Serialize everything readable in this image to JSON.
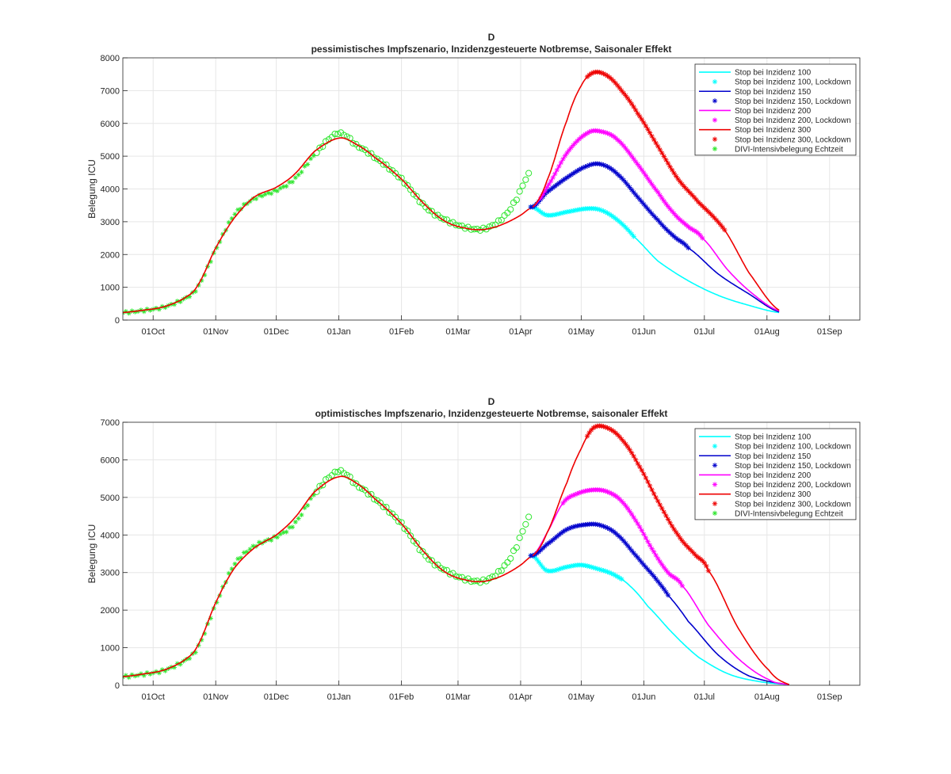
{
  "chart_data": [
    {
      "type": "line",
      "title": "D",
      "subtitle": "pessimistisches Impfszenario, Inzidenzgesteuerte Notbremse, Saisonaler Effekt",
      "xlabel": "",
      "ylabel": "Belegung ICU",
      "ylim": [
        0,
        8000
      ],
      "yticks": [
        "0",
        "1000",
        "2000",
        "3000",
        "4000",
        "5000",
        "6000",
        "7000",
        "8000"
      ],
      "xlim_day": [
        -15,
        350
      ],
      "xticks": [
        {
          "day": 0,
          "label": "01Oct"
        },
        {
          "day": 31,
          "label": "01Nov"
        },
        {
          "day": 61,
          "label": "01Dec"
        },
        {
          "day": 92,
          "label": "01Jan"
        },
        {
          "day": 123,
          "label": "01Feb"
        },
        {
          "day": 151,
          "label": "01Mar"
        },
        {
          "day": 182,
          "label": "01Apr"
        },
        {
          "day": 212,
          "label": "01May"
        },
        {
          "day": 243,
          "label": "01Jun"
        },
        {
          "day": 273,
          "label": "01Jul"
        },
        {
          "day": 304,
          "label": "01Aug"
        },
        {
          "day": 335,
          "label": "01Sep"
        }
      ],
      "grid": true,
      "legend_position": "top-right",
      "base_curve": {
        "x": [
          -15,
          -5,
          5,
          15,
          22,
          31,
          40,
          50,
          61,
          70,
          80,
          92,
          100,
          110,
          123,
          135,
          145,
          155,
          163,
          170,
          176,
          182,
          188
        ],
        "y": [
          230,
          300,
          400,
          650,
          1050,
          2200,
          3100,
          3750,
          4050,
          4450,
          5150,
          5550,
          5380,
          4950,
          4300,
          3500,
          3000,
          2800,
          2760,
          2850,
          3000,
          3200,
          3450
        ]
      },
      "observed": {
        "name": "DIVI-Intensivbelegung Echtzeit",
        "color": "#2ee62e",
        "x": [
          -15,
          -5,
          5,
          15,
          22,
          31,
          40,
          50,
          61,
          70,
          80,
          90,
          92,
          96,
          100,
          110,
          123,
          135,
          145,
          155,
          163,
          170,
          176,
          180,
          183,
          186
        ],
        "y": [
          230,
          290,
          390,
          630,
          1000,
          2150,
          3200,
          3700,
          3950,
          4300,
          5050,
          5650,
          5700,
          5600,
          5350,
          4950,
          4300,
          3450,
          3050,
          2820,
          2770,
          2950,
          3300,
          3700,
          4100,
          4450
        ]
      },
      "series": [
        {
          "name": "Stop bei Inzidenz 100",
          "color": "#00ffff",
          "lockdown_range": [
            187,
            238
          ],
          "x": [
            188,
            195,
            205,
            215,
            222,
            230,
            238,
            250,
            265,
            280,
            295,
            310
          ],
          "y": [
            3450,
            3200,
            3300,
            3400,
            3350,
            3050,
            2550,
            1800,
            1200,
            750,
            450,
            230
          ]
        },
        {
          "name": "Stop bei Inzidenz 150",
          "color": "#0000cc",
          "lockdown_range": [
            187,
            265
          ],
          "x": [
            188,
            195,
            205,
            215,
            222,
            230,
            240,
            250,
            258,
            265,
            280,
            295,
            310
          ],
          "y": [
            3450,
            3900,
            4350,
            4700,
            4750,
            4450,
            3750,
            3050,
            2550,
            2200,
            1400,
            800,
            250
          ]
        },
        {
          "name": "Stop bei Inzidenz 200",
          "color": "#ff00ff",
          "lockdown_range": [
            192,
            272
          ],
          "x": [
            188,
            195,
            205,
            215,
            222,
            230,
            240,
            250,
            258,
            265,
            272,
            285,
            298,
            310
          ],
          "y": [
            3450,
            4050,
            5100,
            5700,
            5750,
            5500,
            4750,
            3900,
            3250,
            2850,
            2500,
            1500,
            750,
            280
          ]
        },
        {
          "name": "Stop bei Inzidenz 300",
          "color": "#ee0000",
          "lockdown_range": [
            215,
            283
          ],
          "x": [
            188,
            195,
            205,
            212,
            218,
            225,
            232,
            240,
            250,
            260,
            270,
            283,
            295,
            310
          ],
          "y": [
            3450,
            4250,
            6100,
            7150,
            7550,
            7450,
            7000,
            6300,
            5300,
            4300,
            3600,
            2750,
            1450,
            300
          ]
        }
      ],
      "legend": [
        "Stop bei Inzidenz 100",
        "Stop bei Inzidenz 100, Lockdown",
        "Stop bei Inzidenz 150",
        "Stop bei Inzidenz 150, Lockdown",
        "Stop bei Inzidenz 200",
        "Stop bei Inzidenz 200, Lockdown",
        "Stop bei Inzidenz 300",
        "Stop bei Inzidenz 300, Lockdown",
        "DIVI-Intensivbelegung Echtzeit"
      ]
    },
    {
      "type": "line",
      "title": "D",
      "subtitle": "optimistisches Impfszenario, Inzidenzgesteuerte Notbremse, saisonaler Effekt",
      "xlabel": "",
      "ylabel": "Belegung ICU",
      "ylim": [
        0,
        7000
      ],
      "yticks": [
        "0",
        "1000",
        "2000",
        "3000",
        "4000",
        "5000",
        "6000",
        "7000"
      ],
      "xlim_day": [
        -15,
        350
      ],
      "xticks": [
        {
          "day": 0,
          "label": "01Oct"
        },
        {
          "day": 31,
          "label": "01Nov"
        },
        {
          "day": 61,
          "label": "01Dec"
        },
        {
          "day": 92,
          "label": "01Jan"
        },
        {
          "day": 123,
          "label": "01Feb"
        },
        {
          "day": 151,
          "label": "01Mar"
        },
        {
          "day": 182,
          "label": "01Apr"
        },
        {
          "day": 212,
          "label": "01May"
        },
        {
          "day": 243,
          "label": "01Jun"
        },
        {
          "day": 273,
          "label": "01Jul"
        },
        {
          "day": 304,
          "label": "01Aug"
        },
        {
          "day": 335,
          "label": "01Sep"
        }
      ],
      "grid": true,
      "legend_position": "top-right",
      "base_curve": {
        "x": [
          -15,
          -5,
          5,
          15,
          22,
          31,
          40,
          50,
          61,
          70,
          80,
          92,
          100,
          110,
          123,
          135,
          145,
          155,
          163,
          170,
          176,
          182,
          188
        ],
        "y": [
          230,
          300,
          400,
          650,
          1050,
          2200,
          3100,
          3650,
          4000,
          4450,
          5150,
          5550,
          5400,
          4950,
          4300,
          3500,
          3000,
          2800,
          2760,
          2850,
          3000,
          3200,
          3450
        ]
      },
      "observed": {
        "name": "DIVI-Intensivbelegung Echtzeit",
        "color": "#2ee62e",
        "x": [
          -15,
          -5,
          5,
          15,
          22,
          31,
          40,
          50,
          61,
          70,
          80,
          90,
          92,
          96,
          100,
          110,
          123,
          135,
          145,
          155,
          163,
          170,
          176,
          180,
          183,
          186
        ],
        "y": [
          230,
          290,
          390,
          630,
          1000,
          2150,
          3200,
          3700,
          3950,
          4300,
          5100,
          5650,
          5700,
          5600,
          5350,
          4950,
          4300,
          3450,
          3050,
          2820,
          2770,
          2950,
          3300,
          3700,
          4100,
          4450
        ]
      },
      "series": [
        {
          "name": "Stop bei Inzidenz 100",
          "color": "#00ffff",
          "lockdown_range": [
            187,
            232
          ],
          "x": [
            188,
            195,
            205,
            212,
            220,
            228,
            236,
            245,
            258,
            270,
            285,
            300,
            315
          ],
          "y": [
            3450,
            3050,
            3150,
            3200,
            3100,
            2950,
            2650,
            2100,
            1350,
            750,
            300,
            100,
            20
          ]
        },
        {
          "name": "Stop bei Inzidenz 150",
          "color": "#0000cc",
          "lockdown_range": [
            187,
            255
          ],
          "x": [
            188,
            195,
            205,
            215,
            222,
            230,
            240,
            248,
            255,
            265,
            280,
            295,
            315
          ],
          "y": [
            3450,
            3750,
            4150,
            4280,
            4250,
            4000,
            3400,
            2900,
            2400,
            1700,
            800,
            250,
            20
          ]
        },
        {
          "name": "Stop bei Inzidenz 200",
          "color": "#ff00ff",
          "lockdown_range": [
            203,
            262
          ],
          "x": [
            188,
            195,
            203,
            210,
            218,
            225,
            232,
            240,
            248,
            255,
            262,
            275,
            290,
            305,
            315
          ],
          "y": [
            3450,
            4050,
            4850,
            5100,
            5200,
            5150,
            4900,
            4300,
            3550,
            3000,
            2650,
            1600,
            700,
            150,
            20
          ]
        },
        {
          "name": "Stop bei Inzidenz 300",
          "color": "#ee0000",
          "lockdown_range": [
            215,
            275
          ],
          "x": [
            188,
            195,
            205,
            212,
            218,
            225,
            232,
            240,
            250,
            260,
            268,
            275,
            290,
            305,
            315
          ],
          "y": [
            3450,
            4050,
            5400,
            6300,
            6850,
            6850,
            6550,
            5900,
            4900,
            4000,
            3500,
            3050,
            1500,
            400,
            20
          ]
        }
      ],
      "legend": [
        "Stop bei Inzidenz 100",
        "Stop bei Inzidenz 100, Lockdown",
        "Stop bei Inzidenz 150",
        "Stop bei Inzidenz 150, Lockdown",
        "Stop bei Inzidenz 200",
        "Stop bei Inzidenz 200, Lockdown",
        "Stop bei Inzidenz 300",
        "Stop bei Inzidenz 300, Lockdown",
        "DIVI-Intensivbelegung Echtzeit"
      ]
    }
  ]
}
